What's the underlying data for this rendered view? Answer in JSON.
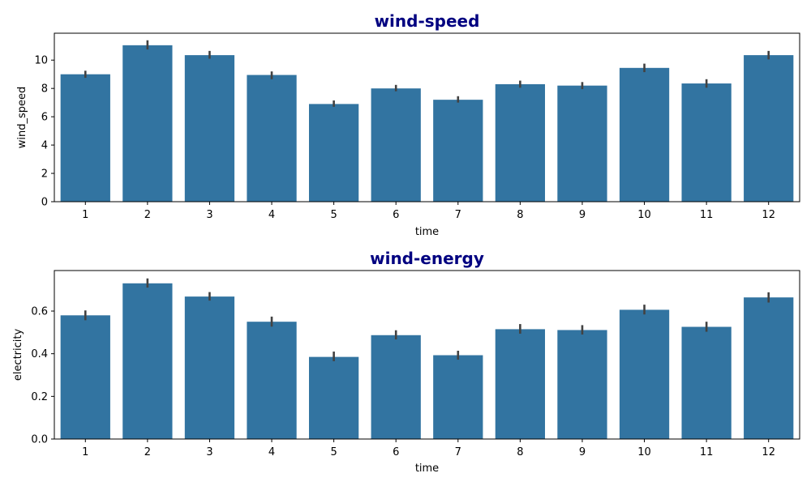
{
  "chart_data": [
    {
      "type": "bar",
      "title": "wind-speed",
      "xlabel": "time",
      "ylabel": "wind_speed",
      "categories": [
        "1",
        "2",
        "3",
        "4",
        "5",
        "6",
        "7",
        "8",
        "9",
        "10",
        "11",
        "12"
      ],
      "values": [
        9.0,
        11.05,
        10.35,
        8.95,
        6.9,
        8.0,
        7.2,
        8.3,
        8.2,
        9.45,
        8.35,
        10.35
      ],
      "error": [
        [
          8.75,
          9.25
        ],
        [
          10.75,
          11.4
        ],
        [
          10.1,
          10.65
        ],
        [
          8.65,
          9.2
        ],
        [
          6.7,
          7.15
        ],
        [
          7.8,
          8.25
        ],
        [
          7.0,
          7.45
        ],
        [
          8.05,
          8.55
        ],
        [
          7.95,
          8.45
        ],
        [
          9.15,
          9.75
        ],
        [
          8.05,
          8.65
        ],
        [
          10.05,
          10.65
        ]
      ],
      "yticks": [
        0,
        2,
        4,
        6,
        8,
        10
      ],
      "ylim": [
        0,
        11.9
      ],
      "bar_color": "#3274a1",
      "error_color": "#424242",
      "grid": false,
      "legend": "none"
    },
    {
      "type": "bar",
      "title": "wind-energy",
      "xlabel": "time",
      "ylabel": "electricity",
      "categories": [
        "1",
        "2",
        "3",
        "4",
        "5",
        "6",
        "7",
        "8",
        "9",
        "10",
        "11",
        "12"
      ],
      "values": [
        0.58,
        0.73,
        0.668,
        0.55,
        0.385,
        0.487,
        0.393,
        0.515,
        0.511,
        0.606,
        0.526,
        0.664
      ],
      "error": [
        [
          0.557,
          0.603
        ],
        [
          0.71,
          0.753
        ],
        [
          0.649,
          0.689
        ],
        [
          0.527,
          0.574
        ],
        [
          0.365,
          0.41
        ],
        [
          0.467,
          0.51
        ],
        [
          0.372,
          0.414
        ],
        [
          0.494,
          0.539
        ],
        [
          0.49,
          0.534
        ],
        [
          0.584,
          0.63
        ],
        [
          0.503,
          0.55
        ],
        [
          0.64,
          0.688
        ]
      ],
      "yticks": [
        0.0,
        0.2,
        0.4,
        0.6
      ],
      "ylim": [
        0,
        0.79
      ],
      "bar_color": "#3274a1",
      "error_color": "#424242",
      "grid": false,
      "legend": "none"
    }
  ]
}
